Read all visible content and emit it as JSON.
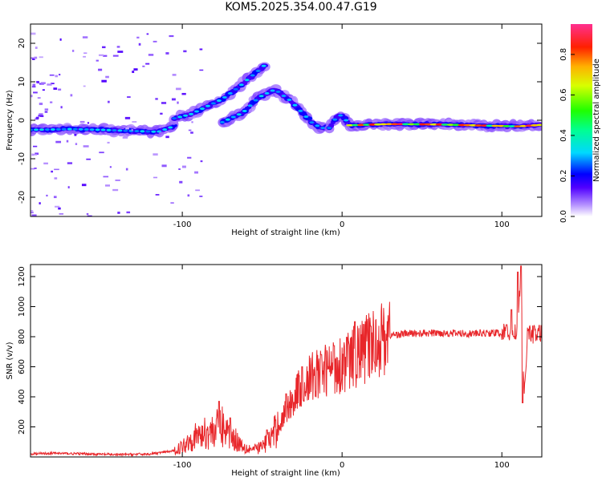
{
  "title": "KOM5.2025.354.00.47.G19",
  "colors": {
    "snr_line": "#e8262a",
    "frame": "#000000"
  },
  "chart_data": [
    {
      "type": "heatmap",
      "xlabel": "Height of straight line (km)",
      "ylabel": "Frequency (Hz)",
      "xlim": [
        -195,
        125
      ],
      "ylim": [
        -25,
        25
      ],
      "xticks": [
        -100,
        0,
        100
      ],
      "xticklabels": [
        "-100",
        "0",
        "100"
      ],
      "yticks": [
        -20,
        -10,
        0,
        10,
        20
      ],
      "yticklabels": [
        "-20",
        "-10",
        "0",
        "10",
        "20"
      ],
      "colorbar": {
        "label": "Normalized spectral amplitude",
        "range": [
          0.0,
          0.95
        ],
        "ticks": [
          0.0,
          0.2,
          0.4,
          0.6,
          0.8
        ],
        "ticklabels": [
          "0.0",
          "0.2",
          "0.4",
          "0.6",
          "0.8"
        ]
      },
      "ridges": [
        {
          "x": [
            -195,
            -170,
            -150,
            -130,
            -115,
            -105
          ],
          "y": [
            -2.5,
            -2.3,
            -2.5,
            -2.8,
            -3.0,
            -1.5
          ]
        },
        {
          "x": [
            -105,
            -95,
            -85,
            -75,
            -65,
            -58,
            -52,
            -48
          ],
          "y": [
            0.5,
            1.5,
            3.5,
            5.5,
            8.5,
            11.0,
            13.0,
            14.5
          ]
        },
        {
          "x": [
            -75,
            -62,
            -52,
            -42,
            -32,
            -25,
            -18,
            -12,
            -8
          ],
          "y": [
            -0.5,
            2.0,
            6.0,
            8.0,
            5.0,
            2.0,
            -1.0,
            -2.0,
            -1.5
          ]
        },
        {
          "x": [
            -8,
            -4,
            0,
            5
          ],
          "y": [
            -2.0,
            0.5,
            1.5,
            -1.5
          ]
        },
        {
          "x": [
            5,
            30,
            60,
            90,
            110,
            125
          ],
          "y": [
            -1.3,
            -1.0,
            -1.1,
            -1.4,
            -1.6,
            -1.2
          ]
        }
      ]
    },
    {
      "type": "line",
      "xlabel": "Height of straight line (km)",
      "ylabel": "SNR (v/v)",
      "xlim": [
        -195,
        125
      ],
      "ylim": [
        0,
        1280
      ],
      "xticks": [
        -100,
        0,
        100
      ],
      "xticklabels": [
        "-100",
        "0",
        "100"
      ],
      "yticks": [
        200,
        400,
        600,
        800,
        1000,
        1200
      ],
      "yticklabels": [
        "200",
        "400",
        "600",
        "800",
        "1000",
        "1200"
      ],
      "series": [
        {
          "x": [
            -195,
            -180,
            -160,
            -140,
            -120,
            -105,
            -100,
            -95,
            -90,
            -85,
            -80,
            -75,
            -70,
            -65,
            -60,
            -55,
            -50,
            -45,
            -40,
            -35,
            -30,
            -25,
            -20,
            -15,
            -10,
            -5,
            0,
            5,
            10,
            15,
            20,
            25,
            30,
            40,
            60,
            80,
            95,
            105,
            108,
            110,
            112,
            113,
            114,
            116,
            118,
            120,
            125
          ],
          "y": [
            20,
            25,
            20,
            15,
            20,
            40,
            70,
            120,
            140,
            160,
            180,
            200,
            150,
            100,
            60,
            50,
            70,
            120,
            200,
            300,
            400,
            480,
            520,
            560,
            580,
            600,
            620,
            650,
            680,
            720,
            760,
            790,
            810,
            820,
            825,
            820,
            825,
            820,
            830,
            850,
            1200,
            700,
            400,
            820,
            830,
            815,
            820
          ],
          "spikes": [
            {
              "x": -77,
              "y": 370
            },
            {
              "x": -70,
              "y": 260
            },
            {
              "x": -47,
              "y": 180
            },
            {
              "x": -35,
              "y": 420
            },
            {
              "x": -25,
              "y": 600
            },
            {
              "x": -13,
              "y": 680
            },
            {
              "x": -5,
              "y": 740
            },
            {
              "x": 8,
              "y": 900
            },
            {
              "x": 18,
              "y": 870
            },
            {
              "x": 103,
              "y": 880
            },
            {
              "x": 106,
              "y": 980
            },
            {
              "x": 110,
              "y": 1230
            },
            {
              "x": 112,
              "y": 1270
            },
            {
              "x": 113,
              "y": 360
            }
          ]
        }
      ]
    }
  ]
}
